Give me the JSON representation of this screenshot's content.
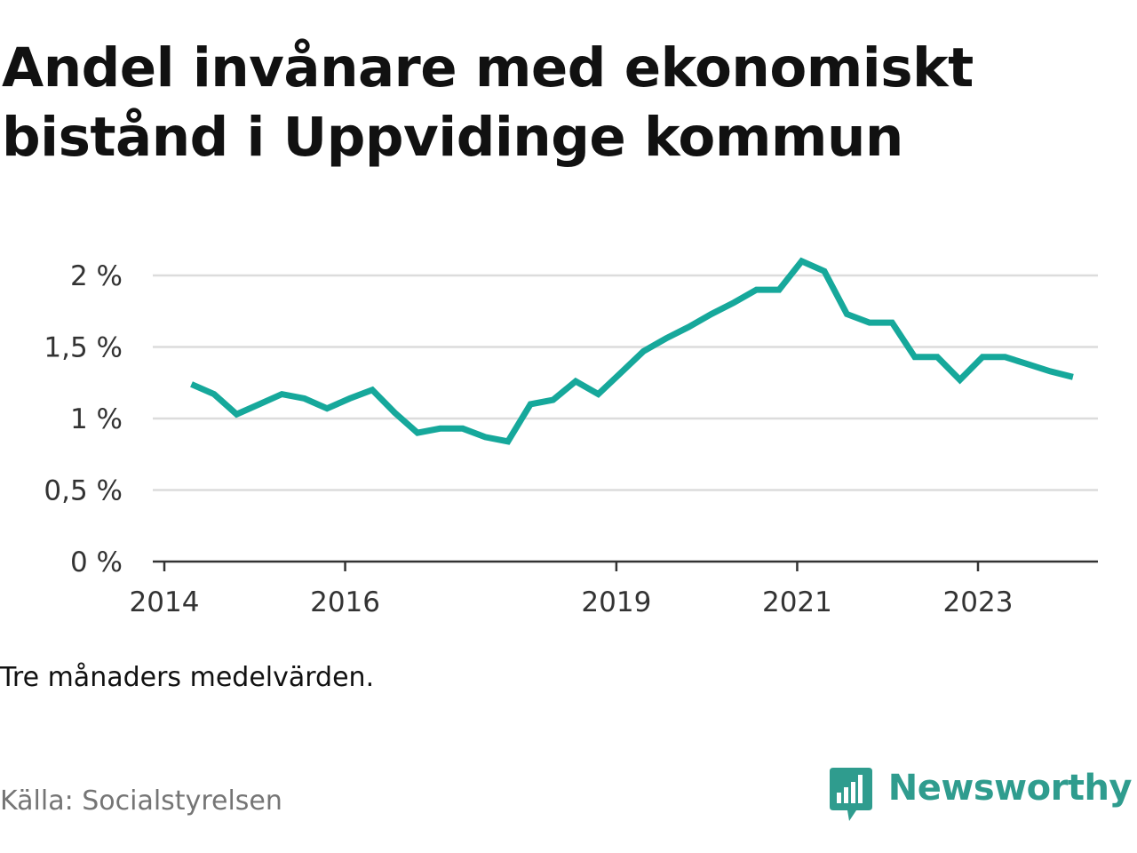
{
  "title_line1": "Andel invånare med ekonomiskt",
  "title_line2": "bistånd i Uppvidinge kommun",
  "note": "Tre månaders medelvärden.",
  "source": "Källa: Socialstyrelsen",
  "brand": {
    "name": "Newsworthy",
    "icon": "bar-chart-speech-bubble-icon",
    "color": "#2f9c8e"
  },
  "chart_data": {
    "type": "line",
    "line_color": "#16a89b",
    "grid": true,
    "ylim": [
      0,
      2.1
    ],
    "y_ticks": [
      {
        "value": 0,
        "label": "0 %"
      },
      {
        "value": 0.5,
        "label": "0,5 %"
      },
      {
        "value": 1,
        "label": "1 %"
      },
      {
        "value": 1.5,
        "label": "1,5 %"
      },
      {
        "value": 2,
        "label": "2 %"
      }
    ],
    "x_ticks": [
      {
        "value": 2014,
        "label": "2014"
      },
      {
        "value": 2016,
        "label": "2016"
      },
      {
        "value": 2019,
        "label": "2019"
      },
      {
        "value": 2021,
        "label": "2021"
      },
      {
        "value": 2023,
        "label": "2023"
      }
    ],
    "xlim": [
      2014,
      2024.3
    ],
    "series": [
      {
        "x": [
          2014.3,
          2014.55,
          2014.8,
          2015.05,
          2015.3,
          2015.55,
          2015.8,
          2016.05,
          2016.3,
          2016.55,
          2016.8,
          2017.05,
          2017.3,
          2017.55,
          2017.8,
          2018.05,
          2018.3,
          2018.55,
          2018.8,
          2019.05,
          2019.3,
          2019.55,
          2019.8,
          2020.05,
          2020.3,
          2020.55,
          2020.8,
          2021.05,
          2021.3,
          2021.55,
          2021.8,
          2022.05,
          2022.3,
          2022.55,
          2022.8,
          2023.05,
          2023.3,
          2023.55,
          2023.8,
          2024.05
        ],
        "y": [
          1.24,
          1.17,
          1.03,
          1.1,
          1.17,
          1.14,
          1.07,
          1.14,
          1.2,
          1.04,
          0.9,
          0.93,
          0.93,
          0.87,
          0.84,
          1.1,
          1.13,
          1.26,
          1.17,
          1.32,
          1.47,
          1.56,
          1.64,
          1.73,
          1.81,
          1.9,
          1.9,
          2.1,
          2.03,
          1.73,
          1.67,
          1.67,
          1.43,
          1.43,
          1.27,
          1.43,
          1.43,
          1.38,
          1.33,
          1.29
        ]
      }
    ]
  }
}
